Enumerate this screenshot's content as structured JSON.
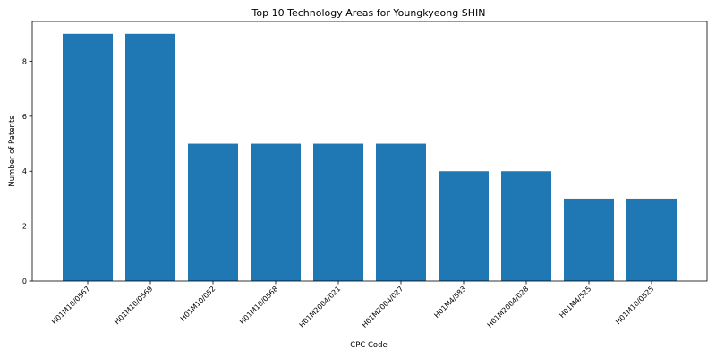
{
  "chart_data": {
    "type": "bar",
    "title": "Top 10 Technology Areas for Youngkyeong SHIN",
    "xlabel": "CPC Code",
    "ylabel": "Number of Patents",
    "categories": [
      "H01M10/0567",
      "H01M10/0569",
      "H01M10/052",
      "H01M10/0568",
      "H01M2004/021",
      "H01M2004/027",
      "H01M4/583",
      "H01M2004/028",
      "H01M4/525",
      "H01M10/0525"
    ],
    "values": [
      9,
      9,
      5,
      5,
      5,
      5,
      4,
      4,
      3,
      3
    ],
    "yticks": [
      0,
      2,
      4,
      6,
      8
    ],
    "ylim": [
      0,
      9.45
    ],
    "grid": false,
    "bar_color": "#1f77b4"
  }
}
